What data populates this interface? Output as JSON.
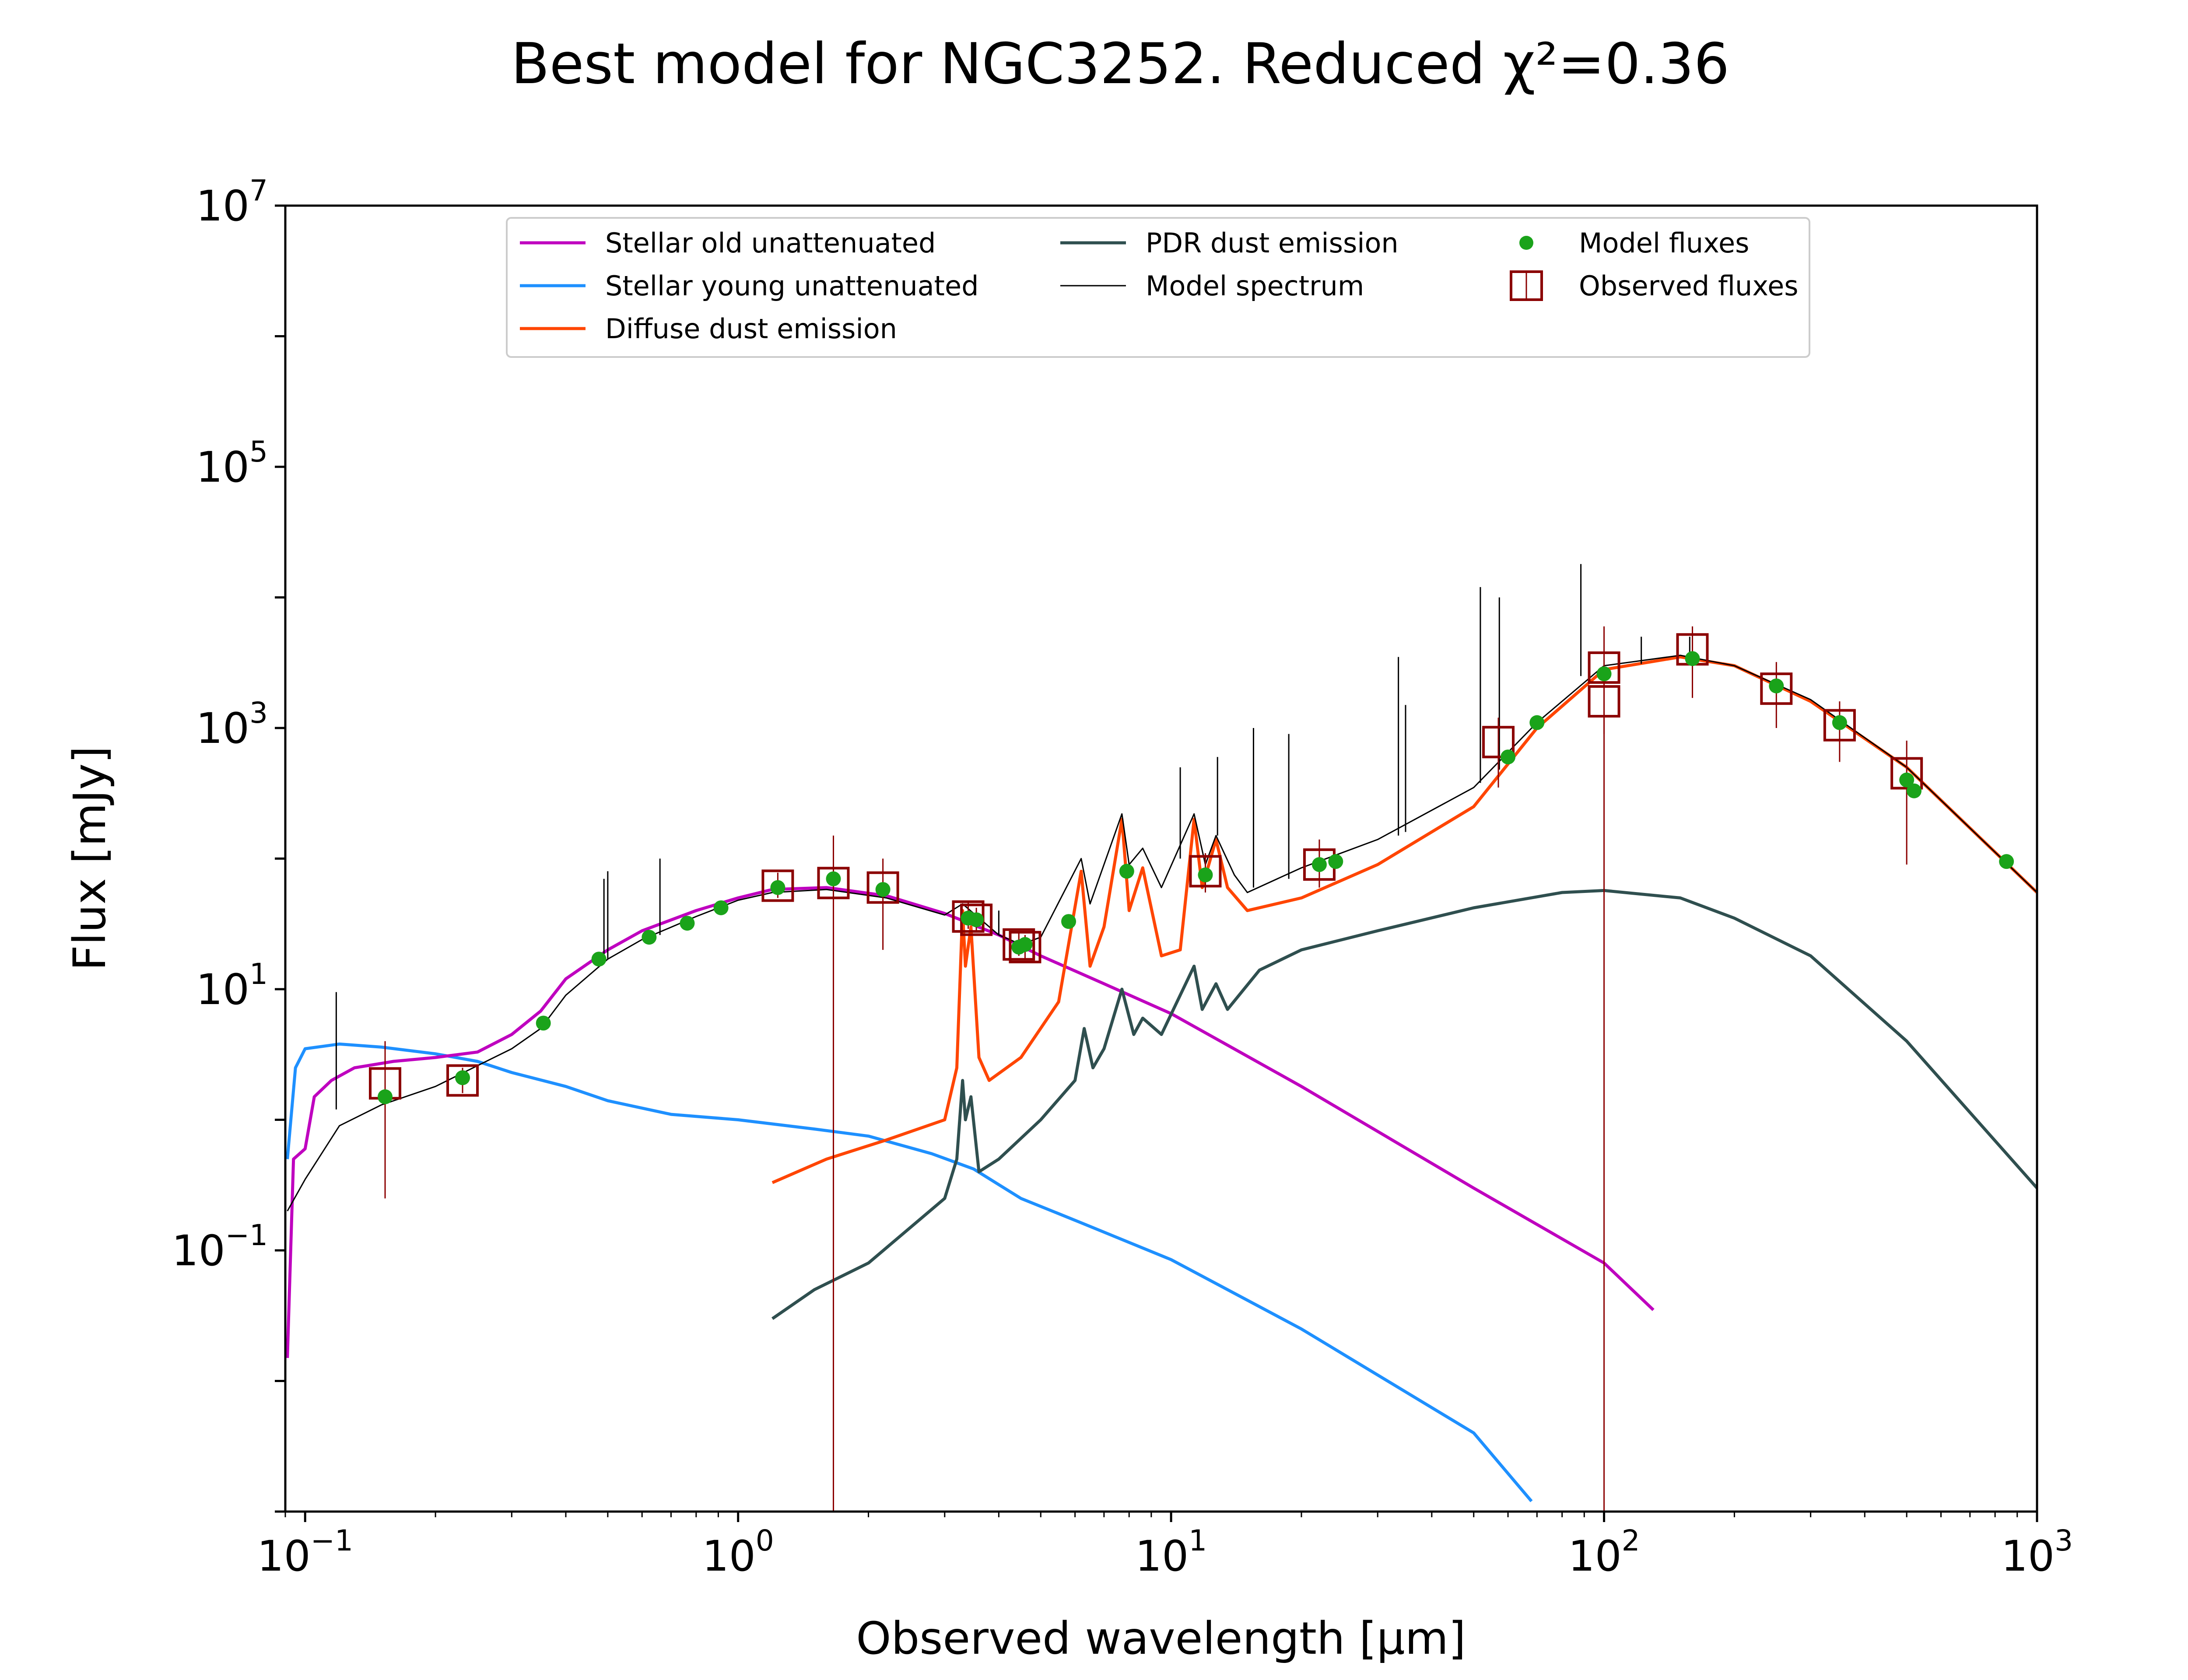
{
  "chart_data": {
    "type": "line",
    "title": "Best model for NGC3252. Reduced χ²=0.36",
    "xlabel": "Observed wavelength [μm]",
    "ylabel": "Flux [mJy]",
    "xscale": "log",
    "yscale": "log",
    "xlim": [
      0.09,
      1000
    ],
    "ylim": [
      0.001,
      10000000
    ],
    "x_ticks": [
      {
        "value": 0.1,
        "base": "10",
        "exp": "−1"
      },
      {
        "value": 1,
        "base": "10",
        "exp": "0"
      },
      {
        "value": 10,
        "base": "10",
        "exp": "1"
      },
      {
        "value": 100,
        "base": "10",
        "exp": "2"
      },
      {
        "value": 1000,
        "base": "10",
        "exp": "3"
      }
    ],
    "y_ticks": [
      {
        "value": 0.1,
        "base": "10",
        "exp": "−1"
      },
      {
        "value": 10,
        "base": "10",
        "exp": "1"
      },
      {
        "value": 1000,
        "base": "10",
        "exp": "3"
      },
      {
        "value": 100000,
        "base": "10",
        "exp": "5"
      },
      {
        "value": 10000000,
        "base": "10",
        "exp": "7"
      }
    ],
    "legend_position": "top-center",
    "colors": {
      "stellar_old": "#bf00bf",
      "stellar_young": "#1e90ff",
      "diffuse": "#ff4500",
      "pdr": "#2f4f4f",
      "model": "#000000",
      "model_fluxes": "#1aa31a",
      "observed": "#8b0000"
    },
    "series": [
      {
        "key": "stellar_old",
        "name": "Stellar old unattenuated",
        "color": "#bf00bf",
        "width": 7,
        "points": [
          [
            0.091,
            0.015
          ],
          [
            0.094,
            0.5
          ],
          [
            0.1,
            0.6
          ],
          [
            0.105,
            1.5
          ],
          [
            0.115,
            2.0
          ],
          [
            0.13,
            2.5
          ],
          [
            0.16,
            2.8
          ],
          [
            0.2,
            3.0
          ],
          [
            0.25,
            3.3
          ],
          [
            0.3,
            4.5
          ],
          [
            0.35,
            6.8
          ],
          [
            0.4,
            12
          ],
          [
            0.5,
            20
          ],
          [
            0.6,
            28
          ],
          [
            0.8,
            40
          ],
          [
            1.0,
            50
          ],
          [
            1.2,
            58
          ],
          [
            1.6,
            60
          ],
          [
            2.2,
            52
          ],
          [
            3.0,
            38
          ],
          [
            4.0,
            26
          ],
          [
            5.0,
            18
          ],
          [
            7.0,
            11
          ],
          [
            10.0,
            6.5
          ],
          [
            20.0,
            1.8
          ],
          [
            50.0,
            0.3
          ],
          [
            100.0,
            0.08
          ],
          [
            130.0,
            0.035
          ]
        ]
      },
      {
        "key": "stellar_young",
        "name": "Stellar young unattenuated",
        "color": "#1e90ff",
        "width": 7,
        "points": [
          [
            0.091,
            0.5
          ],
          [
            0.095,
            2.5
          ],
          [
            0.1,
            3.5
          ],
          [
            0.12,
            3.8
          ],
          [
            0.15,
            3.6
          ],
          [
            0.2,
            3.2
          ],
          [
            0.25,
            2.8
          ],
          [
            0.3,
            2.3
          ],
          [
            0.4,
            1.8
          ],
          [
            0.5,
            1.4
          ],
          [
            0.7,
            1.1
          ],
          [
            1.0,
            1.0
          ],
          [
            1.5,
            0.85
          ],
          [
            2.0,
            0.75
          ],
          [
            2.8,
            0.55
          ],
          [
            3.5,
            0.42
          ],
          [
            4.5,
            0.25
          ],
          [
            6.0,
            0.17
          ],
          [
            10.0,
            0.085
          ],
          [
            20.0,
            0.025
          ],
          [
            50.0,
            0.004
          ],
          [
            68.0,
            0.0012
          ]
        ]
      },
      {
        "key": "diffuse",
        "name": "Diffuse dust emission",
        "color": "#ff4500",
        "width": 7,
        "points": [
          [
            1.2,
            0.33
          ],
          [
            1.6,
            0.5
          ],
          [
            2.2,
            0.7
          ],
          [
            3.0,
            1.0
          ],
          [
            3.2,
            2.5
          ],
          [
            3.3,
            40
          ],
          [
            3.35,
            15
          ],
          [
            3.45,
            30
          ],
          [
            3.6,
            3
          ],
          [
            3.8,
            2.0
          ],
          [
            4.5,
            3
          ],
          [
            5.5,
            8
          ],
          [
            6.2,
            80
          ],
          [
            6.5,
            15
          ],
          [
            7.0,
            30
          ],
          [
            7.7,
            200
          ],
          [
            8.0,
            40
          ],
          [
            8.6,
            85
          ],
          [
            9.5,
            18
          ],
          [
            10.5,
            20
          ],
          [
            11.3,
            200
          ],
          [
            11.8,
            60
          ],
          [
            12.7,
            140
          ],
          [
            13.5,
            60
          ],
          [
            15.0,
            40
          ],
          [
            20.0,
            50
          ],
          [
            30.0,
            90
          ],
          [
            50.0,
            250
          ],
          [
            70.0,
            1000
          ],
          [
            100.0,
            2800
          ],
          [
            150.0,
            3500
          ],
          [
            200.0,
            3000
          ],
          [
            300.0,
            1600
          ],
          [
            500.0,
            500
          ],
          [
            1000.0,
            55
          ]
        ]
      },
      {
        "key": "pdr",
        "name": "PDR dust emission",
        "color": "#2f4f4f",
        "width": 7,
        "points": [
          [
            1.2,
            0.03
          ],
          [
            1.5,
            0.05
          ],
          [
            2.0,
            0.08
          ],
          [
            3.0,
            0.25
          ],
          [
            3.2,
            0.5
          ],
          [
            3.3,
            2
          ],
          [
            3.35,
            1.0
          ],
          [
            3.45,
            1.5
          ],
          [
            3.6,
            0.4
          ],
          [
            4.0,
            0.5
          ],
          [
            5.0,
            1.0
          ],
          [
            6.0,
            2.0
          ],
          [
            6.3,
            5
          ],
          [
            6.6,
            2.5
          ],
          [
            7.0,
            3.5
          ],
          [
            7.7,
            10
          ],
          [
            8.2,
            4.5
          ],
          [
            8.6,
            6
          ],
          [
            9.5,
            4.5
          ],
          [
            11.3,
            15
          ],
          [
            11.8,
            7
          ],
          [
            12.7,
            11
          ],
          [
            13.5,
            7
          ],
          [
            16.0,
            14
          ],
          [
            20.0,
            20
          ],
          [
            30.0,
            28
          ],
          [
            50.0,
            42
          ],
          [
            80.0,
            55
          ],
          [
            100.0,
            57
          ],
          [
            150.0,
            50
          ],
          [
            200.0,
            35
          ],
          [
            300.0,
            18
          ],
          [
            500.0,
            4
          ],
          [
            1000.0,
            0.3
          ]
        ]
      },
      {
        "key": "model",
        "name": "Model spectrum",
        "color": "#000000",
        "width": 3,
        "points": [
          [
            0.091,
            0.2
          ],
          [
            0.1,
            0.35
          ],
          [
            0.12,
            0.9
          ],
          [
            0.15,
            1.3
          ],
          [
            0.2,
            1.8
          ],
          [
            0.3,
            3.5
          ],
          [
            0.35,
            5
          ],
          [
            0.4,
            9
          ],
          [
            0.5,
            17
          ],
          [
            0.6,
            24
          ],
          [
            0.8,
            36
          ],
          [
            1.0,
            48
          ],
          [
            1.2,
            55
          ],
          [
            1.6,
            58
          ],
          [
            2.2,
            50
          ],
          [
            3.0,
            37
          ],
          [
            3.3,
            45
          ],
          [
            3.5,
            38
          ],
          [
            4.0,
            26
          ],
          [
            4.5,
            22
          ],
          [
            5.0,
            25
          ],
          [
            6.2,
            100
          ],
          [
            6.5,
            45
          ],
          [
            7.7,
            220
          ],
          [
            8.0,
            90
          ],
          [
            8.6,
            120
          ],
          [
            9.5,
            60
          ],
          [
            11.3,
            220
          ],
          [
            12.0,
            90
          ],
          [
            12.7,
            150
          ],
          [
            14.0,
            75
          ],
          [
            15.0,
            55
          ],
          [
            20.0,
            85
          ],
          [
            30.0,
            140
          ],
          [
            50.0,
            350
          ],
          [
            70.0,
            1100
          ],
          [
            100.0,
            3000
          ],
          [
            150.0,
            3600
          ],
          [
            200.0,
            3000
          ],
          [
            300.0,
            1650
          ],
          [
            500.0,
            500
          ],
          [
            1000.0,
            55
          ]
        ]
      }
    ],
    "model_spikes": [
      {
        "x": 0.118,
        "top": 9.5,
        "base": 1.2
      },
      {
        "x": 0.49,
        "top": 70,
        "base": 17
      },
      {
        "x": 0.5,
        "top": 80,
        "base": 17
      },
      {
        "x": 0.66,
        "top": 100,
        "base": 26
      },
      {
        "x": 4.0,
        "top": 40,
        "base": 26
      },
      {
        "x": 10.5,
        "top": 500,
        "base": 100
      },
      {
        "x": 12.8,
        "top": 600,
        "base": 150
      },
      {
        "x": 15.5,
        "top": 1000,
        "base": 60
      },
      {
        "x": 18.7,
        "top": 900,
        "base": 70
      },
      {
        "x": 33.5,
        "top": 3500,
        "base": 150
      },
      {
        "x": 34.8,
        "top": 1500,
        "base": 160
      },
      {
        "x": 51.8,
        "top": 12000,
        "base": 380
      },
      {
        "x": 57.3,
        "top": 10000,
        "base": 480
      },
      {
        "x": 88.4,
        "top": 18000,
        "base": 2500
      },
      {
        "x": 121.9,
        "top": 5000,
        "base": 3100
      },
      {
        "x": 157.7,
        "top": 5000,
        "base": 3500
      }
    ],
    "model_fluxes": {
      "name": "Model fluxes",
      "color": "#1aa31a",
      "points": [
        [
          0.153,
          1.5
        ],
        [
          0.231,
          2.1
        ],
        [
          0.355,
          5.5
        ],
        [
          0.477,
          17
        ],
        [
          0.623,
          25
        ],
        [
          0.763,
          32
        ],
        [
          0.913,
          42
        ],
        [
          1.235,
          60
        ],
        [
          1.66,
          70
        ],
        [
          2.16,
          58
        ],
        [
          3.4,
          35
        ],
        [
          3.55,
          34
        ],
        [
          4.45,
          21
        ],
        [
          4.6,
          22
        ],
        [
          5.8,
          33
        ],
        [
          7.9,
          80
        ],
        [
          12.0,
          75
        ],
        [
          22.0,
          90
        ],
        [
          24.0,
          95
        ],
        [
          60.0,
          600
        ],
        [
          70.0,
          1100
        ],
        [
          100.0,
          2600
        ],
        [
          160.0,
          3400
        ],
        [
          250.0,
          2100
        ],
        [
          350.0,
          1100
        ],
        [
          500.0,
          400
        ],
        [
          520.0,
          330
        ],
        [
          850.0,
          95
        ]
      ]
    },
    "observed_fluxes": {
      "name": "Observed fluxes",
      "color": "#8b0000",
      "points": [
        {
          "x": 0.153,
          "y": 1.9,
          "lo": 0.25,
          "hi": 4.0
        },
        {
          "x": 0.231,
          "y": 2.0,
          "lo": 1.6,
          "hi": 2.5
        },
        {
          "x": 1.235,
          "y": 62,
          "lo": 50,
          "hi": 78
        },
        {
          "x": 1.66,
          "y": 65,
          "lo": 0.001,
          "hi": 150
        },
        {
          "x": 2.16,
          "y": 60,
          "lo": 20,
          "hi": 100
        },
        {
          "x": 3.4,
          "y": 36,
          "lo": 29,
          "hi": 46
        },
        {
          "x": 3.55,
          "y": 34,
          "lo": 28,
          "hi": 42
        },
        {
          "x": 4.45,
          "y": 22,
          "lo": 18,
          "hi": 27
        },
        {
          "x": 4.6,
          "y": 21,
          "lo": 17,
          "hi": 26
        },
        {
          "x": 12.0,
          "y": 80,
          "lo": 55,
          "hi": 110
        },
        {
          "x": 22.0,
          "y": 90,
          "lo": 60,
          "hi": 140
        },
        {
          "x": 57.0,
          "y": 780,
          "lo": 350,
          "hi": 1200
        },
        {
          "x": 100.0,
          "y": 2900,
          "lo": 0.001,
          "hi": 6000
        },
        {
          "x": 100.0,
          "y": 1600,
          "lo": 900,
          "hi": 2500
        },
        {
          "x": 160.0,
          "y": 4000,
          "lo": 1700,
          "hi": 6000
        },
        {
          "x": 250.0,
          "y": 2000,
          "lo": 1000,
          "hi": 3200
        },
        {
          "x": 350.0,
          "y": 1050,
          "lo": 550,
          "hi": 1600
        },
        {
          "x": 500.0,
          "y": 450,
          "lo": 90,
          "hi": 800
        }
      ]
    },
    "legend": [
      {
        "key": "stellar_old",
        "label": "Stellar old unattenuated",
        "kind": "line",
        "color": "#bf00bf",
        "col": 0,
        "row": 0
      },
      {
        "key": "stellar_young",
        "label": "Stellar young unattenuated",
        "kind": "line",
        "color": "#1e90ff",
        "col": 0,
        "row": 1
      },
      {
        "key": "diffuse",
        "label": "Diffuse dust emission",
        "kind": "line",
        "color": "#ff4500",
        "col": 0,
        "row": 2
      },
      {
        "key": "pdr",
        "label": "PDR dust emission",
        "kind": "line",
        "color": "#2f4f4f",
        "col": 1,
        "row": 0
      },
      {
        "key": "model",
        "label": "Model spectrum",
        "kind": "thinline",
        "color": "#000000",
        "col": 1,
        "row": 1
      },
      {
        "key": "model_fluxes",
        "label": "Model fluxes",
        "kind": "dot",
        "color": "#1aa31a",
        "col": 2,
        "row": 0
      },
      {
        "key": "observed",
        "label": "Observed fluxes",
        "kind": "square",
        "color": "#8b0000",
        "col": 2,
        "row": 1
      }
    ]
  }
}
